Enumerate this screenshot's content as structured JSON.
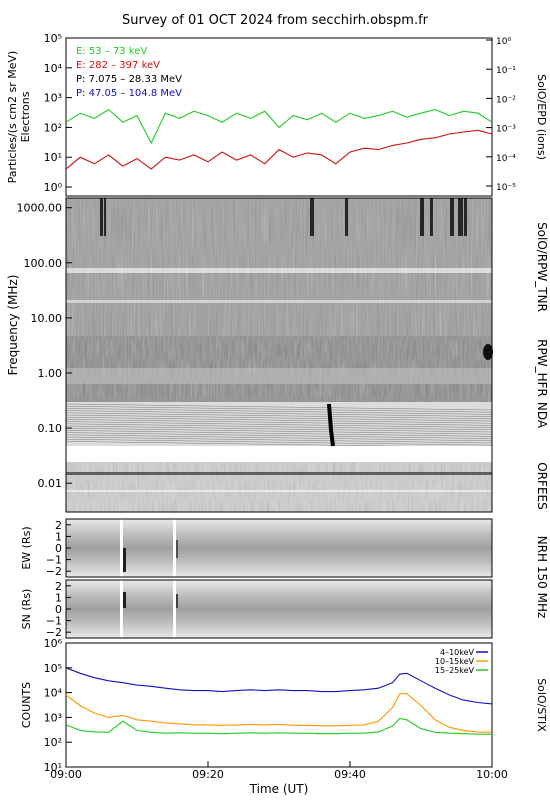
{
  "title": "Survey of 01 OCT 2024 from secchirh.obspm.fr",
  "chart_data": [
    {
      "type": "line",
      "panel": "particles",
      "ylabel_left": "Particles/(s cm2 sr MeV)",
      "ylabel_left_sub": "Electrons",
      "ylabel_right": "SolO/EPD (ions)",
      "y_scale": "log",
      "ylim": [
        0.5,
        100000
      ],
      "ylim_right": [
        1e-05,
        1
      ],
      "yticks_left": [
        "10⁰",
        "10¹",
        "10²",
        "10³",
        "10⁴",
        "10⁵"
      ],
      "yticks_right": [
        "10⁻⁵",
        "10⁻⁴",
        "10⁻³",
        "10⁻²",
        "10⁻¹",
        "10⁰"
      ],
      "legend": [
        {
          "label": "E: 53 – 73 keV",
          "color": "#22cc22"
        },
        {
          "label": "E: 282 – 397 keV",
          "color": "#cc1111"
        },
        {
          "label": "P: 7.075 – 28.33 MeV",
          "color": "#000000"
        },
        {
          "label": "P: 47.05 – 104.8 MeV",
          "color": "#1111bb"
        }
      ],
      "series": [
        {
          "name": "E: 53 – 73 keV",
          "color": "#22cc22",
          "x": [
            0,
            2,
            4,
            6,
            8,
            10,
            12,
            14,
            16,
            18,
            20,
            22,
            24,
            26,
            28,
            30,
            32,
            34,
            36,
            38,
            40,
            42,
            44,
            46,
            48,
            50,
            52,
            54,
            56,
            58,
            60
          ],
          "values": [
            150,
            300,
            200,
            400,
            150,
            250,
            30,
            300,
            200,
            350,
            250,
            150,
            300,
            200,
            350,
            100,
            250,
            180,
            300,
            150,
            300,
            200,
            250,
            350,
            220,
            300,
            400,
            250,
            350,
            300,
            150
          ]
        },
        {
          "name": "E: 282 – 397 keV",
          "color": "#cc1111",
          "x": [
            0,
            2,
            4,
            6,
            8,
            10,
            12,
            14,
            16,
            18,
            20,
            22,
            24,
            26,
            28,
            30,
            32,
            34,
            36,
            38,
            40,
            42,
            44,
            46,
            48,
            50,
            52,
            54,
            56,
            58,
            60
          ],
          "values": [
            4,
            10,
            6,
            12,
            5,
            9,
            4,
            10,
            8,
            12,
            7,
            15,
            8,
            12,
            6,
            18,
            10,
            14,
            12,
            6,
            15,
            20,
            18,
            25,
            30,
            40,
            45,
            60,
            70,
            80,
            60
          ]
        }
      ]
    },
    {
      "type": "heatmap",
      "panel": "radio-spectra",
      "ylabel_left": "Frequency (MHz)",
      "y_scale": "log",
      "ylim": [
        0.003,
        1500
      ],
      "yticks_left": [
        "0.01",
        "0.10",
        "1.00",
        "10.00",
        "100.00",
        "1000.00"
      ],
      "labels_right": [
        "SolO/RPW_TNR",
        "RPW_HFR",
        "NDA",
        "ORFEES"
      ]
    },
    {
      "type": "heatmap",
      "panel": "nrh-ew",
      "ylabel_left": "EW (Rs)",
      "ylim": [
        -2.5,
        2.5
      ],
      "yticks_left": [
        "2",
        "1",
        "0",
        "−1",
        "−2"
      ],
      "label_right": "NRH 150 MHz"
    },
    {
      "type": "heatmap",
      "panel": "nrh-sn",
      "ylabel_left": "SN (Rs)",
      "ylim": [
        -2.5,
        2.5
      ],
      "yticks_left": [
        "2",
        "1",
        "0",
        "−1",
        "−2"
      ]
    },
    {
      "type": "line",
      "panel": "stix",
      "ylabel_left": "COUNTS",
      "ylabel_right": "SolO/STIX",
      "y_scale": "log",
      "ylim": [
        10,
        1000000
      ],
      "yticks_left": [
        "10¹",
        "10²",
        "10³",
        "10⁴",
        "10⁵",
        "10⁶"
      ],
      "legend": [
        {
          "label": "4–10keV",
          "color": "#1111bb"
        },
        {
          "label": "10–15keV",
          "color": "#ff9900"
        },
        {
          "label": "15–25keV",
          "color": "#22cc22"
        }
      ],
      "series": [
        {
          "name": "4–10keV",
          "color": "#1111bb",
          "x": [
            0,
            2,
            4,
            6,
            8,
            10,
            12,
            14,
            16,
            18,
            20,
            22,
            24,
            26,
            28,
            30,
            32,
            34,
            36,
            38,
            40,
            42,
            44,
            46,
            47,
            48,
            50,
            52,
            54,
            56,
            58,
            60
          ],
          "values": [
            100000,
            60000,
            40000,
            30000,
            25000,
            20000,
            18000,
            15000,
            13000,
            12000,
            12000,
            11000,
            12000,
            13000,
            12000,
            13000,
            12000,
            12000,
            11000,
            11000,
            12000,
            13000,
            15000,
            25000,
            55000,
            60000,
            30000,
            15000,
            8000,
            5000,
            4000,
            3500
          ]
        },
        {
          "name": "10–15keV",
          "color": "#ff9900",
          "x": [
            0,
            2,
            4,
            6,
            8,
            10,
            12,
            14,
            16,
            18,
            20,
            22,
            24,
            26,
            28,
            30,
            32,
            34,
            36,
            38,
            40,
            42,
            44,
            46,
            47,
            48,
            50,
            52,
            54,
            56,
            58,
            60
          ],
          "values": [
            8000,
            3000,
            1500,
            1000,
            1200,
            800,
            700,
            600,
            550,
            500,
            500,
            480,
            500,
            520,
            500,
            520,
            480,
            480,
            460,
            460,
            480,
            500,
            700,
            2500,
            9000,
            9000,
            3000,
            800,
            400,
            300,
            260,
            250
          ]
        },
        {
          "name": "15–25keV",
          "color": "#22cc22",
          "x": [
            0,
            2,
            4,
            6,
            8,
            10,
            12,
            14,
            16,
            18,
            20,
            22,
            24,
            26,
            28,
            30,
            32,
            34,
            36,
            38,
            40,
            42,
            44,
            46,
            47,
            48,
            50,
            52,
            54,
            56,
            58,
            60
          ],
          "values": [
            500,
            300,
            260,
            250,
            700,
            300,
            250,
            230,
            240,
            230,
            230,
            220,
            230,
            240,
            230,
            240,
            230,
            230,
            220,
            220,
            230,
            230,
            260,
            450,
            900,
            800,
            350,
            250,
            230,
            220,
            210,
            210
          ]
        }
      ]
    }
  ],
  "x_axis": {
    "label": "Time (UT)",
    "range_minutes": [
      0,
      60
    ],
    "ticks": [
      {
        "minute": 0,
        "label": "09:00"
      },
      {
        "minute": 20,
        "label": "09:20"
      },
      {
        "minute": 40,
        "label": "09:40"
      },
      {
        "minute": 60,
        "label": "10:00"
      }
    ]
  }
}
